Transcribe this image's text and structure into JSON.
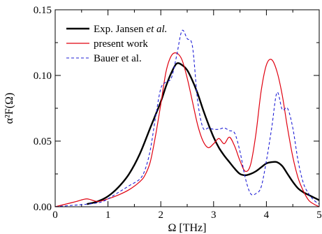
{
  "chart_data": {
    "type": "line",
    "title": "",
    "xlabel": "Ω [THz]",
    "ylabel": "α²F(Ω)",
    "xlim": [
      0,
      5
    ],
    "ylim": [
      0,
      0.15
    ],
    "x_ticks": [
      "0",
      "1",
      "2",
      "3",
      "4",
      "5"
    ],
    "y_ticks": [
      "0.00",
      "0.05",
      "0.10",
      "0.15"
    ],
    "x_tick_values": [
      0,
      1,
      2,
      3,
      4,
      5
    ],
    "y_tick_values": [
      0,
      0.05,
      0.1,
      0.15
    ],
    "grid": false,
    "legend_position": "top-left",
    "series": [
      {
        "name": "Exp. Jansen et al.",
        "name_plain": "Exp. Jansen ",
        "name_italic": "et al.",
        "color": "#000000",
        "style": "solid-thick",
        "x": [
          0.6,
          0.8,
          1.0,
          1.2,
          1.4,
          1.6,
          1.8,
          2.0,
          2.1,
          2.2,
          2.3,
          2.4,
          2.5,
          2.6,
          2.7,
          2.8,
          2.9,
          3.0,
          3.1,
          3.2,
          3.3,
          3.4,
          3.5,
          3.6,
          3.7,
          3.8,
          3.9,
          4.0,
          4.1,
          4.2,
          4.3,
          4.4,
          4.5,
          4.6,
          4.7,
          4.8,
          4.9,
          5.0
        ],
        "y": [
          0.002,
          0.004,
          0.008,
          0.015,
          0.025,
          0.04,
          0.06,
          0.08,
          0.092,
          0.102,
          0.109,
          0.108,
          0.104,
          0.096,
          0.086,
          0.074,
          0.063,
          0.053,
          0.045,
          0.039,
          0.034,
          0.029,
          0.025,
          0.024,
          0.025,
          0.027,
          0.03,
          0.033,
          0.034,
          0.034,
          0.031,
          0.025,
          0.019,
          0.014,
          0.011,
          0.009,
          0.007,
          0.005
        ]
      },
      {
        "name": "present work",
        "color": "#e0000f",
        "style": "solid",
        "x": [
          0.0,
          0.2,
          0.4,
          0.6,
          0.8,
          1.0,
          1.2,
          1.4,
          1.6,
          1.7,
          1.8,
          1.9,
          2.0,
          2.1,
          2.2,
          2.3,
          2.4,
          2.5,
          2.6,
          2.7,
          2.8,
          2.9,
          3.0,
          3.1,
          3.2,
          3.3,
          3.4,
          3.5,
          3.6,
          3.7,
          3.8,
          3.9,
          4.0,
          4.1,
          4.2,
          4.3,
          4.4,
          4.5,
          4.6,
          4.7,
          4.8,
          4.9,
          5.0
        ],
        "y": [
          0.0,
          0.002,
          0.004,
          0.006,
          0.004,
          0.006,
          0.009,
          0.013,
          0.019,
          0.024,
          0.034,
          0.054,
          0.078,
          0.103,
          0.115,
          0.117,
          0.112,
          0.098,
          0.08,
          0.062,
          0.05,
          0.045,
          0.048,
          0.052,
          0.048,
          0.053,
          0.046,
          0.035,
          0.027,
          0.032,
          0.055,
          0.088,
          0.108,
          0.112,
          0.103,
          0.085,
          0.06,
          0.038,
          0.022,
          0.012,
          0.005,
          0.002,
          0.0
        ]
      },
      {
        "name": "Bauer et al.",
        "color": "#1f1fd6",
        "style": "dashed",
        "x": [
          0.0,
          0.3,
          0.6,
          0.9,
          1.2,
          1.4,
          1.6,
          1.7,
          1.8,
          1.9,
          2.0,
          2.1,
          2.2,
          2.3,
          2.4,
          2.5,
          2.6,
          2.7,
          2.8,
          2.9,
          3.0,
          3.1,
          3.2,
          3.3,
          3.4,
          3.5,
          3.6,
          3.7,
          3.8,
          3.9,
          4.0,
          4.1,
          4.2,
          4.3,
          4.4,
          4.5,
          4.6,
          4.7,
          4.8,
          4.9,
          5.0
        ],
        "y": [
          0.0,
          0.001,
          0.002,
          0.004,
          0.011,
          0.016,
          0.021,
          0.028,
          0.043,
          0.068,
          0.09,
          0.095,
          0.098,
          0.115,
          0.134,
          0.128,
          0.122,
          0.08,
          0.06,
          0.06,
          0.059,
          0.059,
          0.06,
          0.058,
          0.056,
          0.042,
          0.022,
          0.01,
          0.01,
          0.015,
          0.035,
          0.06,
          0.087,
          0.074,
          0.075,
          0.06,
          0.035,
          0.018,
          0.01,
          0.005,
          0.002
        ]
      }
    ]
  }
}
